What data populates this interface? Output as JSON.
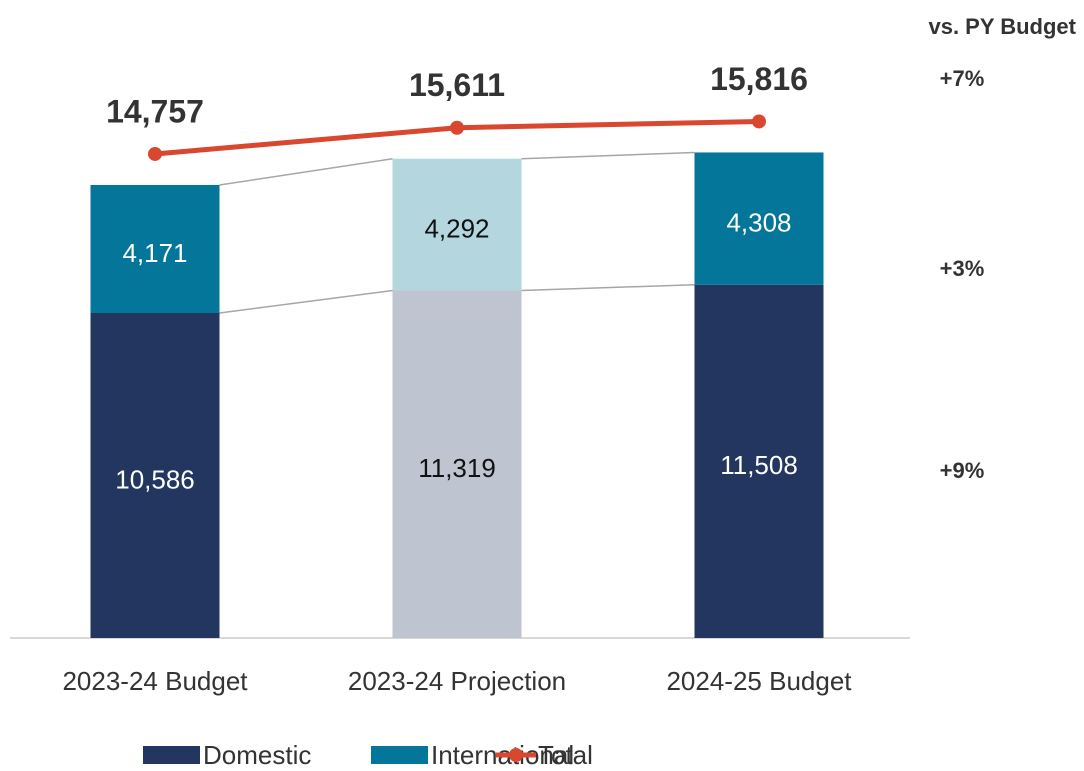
{
  "chart_data": {
    "type": "bar",
    "categories": [
      "2023-24 Budget",
      "2023-24 Projection",
      "2024-25 Budget"
    ],
    "stacked": true,
    "ylim": [
      0,
      20000
    ],
    "series": [
      {
        "name": "Domestic",
        "color": "#22365f",
        "colors": [
          "#22365f",
          "#bec5d1",
          "#22365f"
        ],
        "label_colors": [
          "#ffffff",
          "#111111",
          "#ffffff"
        ],
        "values": [
          10586,
          11319,
          11508
        ],
        "value_labels": [
          "10,586",
          "11,319",
          "11,508"
        ]
      },
      {
        "name": "International",
        "color": "#047699",
        "colors": [
          "#047699",
          "#b3d6df",
          "#047699"
        ],
        "label_colors": [
          "#ffffff",
          "#111111",
          "#ffffff"
        ],
        "values": [
          4171,
          4292,
          4308
        ],
        "value_labels": [
          "4,171",
          "4,292",
          "4,308"
        ]
      },
      {
        "name": "Total",
        "type": "line",
        "color": "#d9472f",
        "values": [
          14757,
          15611,
          15816
        ],
        "value_labels": [
          "14,757",
          "15,611",
          "15,816"
        ]
      }
    ],
    "annotations": {
      "title": "vs. PY Budget",
      "color": "#ff0000",
      "items": [
        "+7%",
        "+3%",
        "+9%"
      ]
    }
  }
}
